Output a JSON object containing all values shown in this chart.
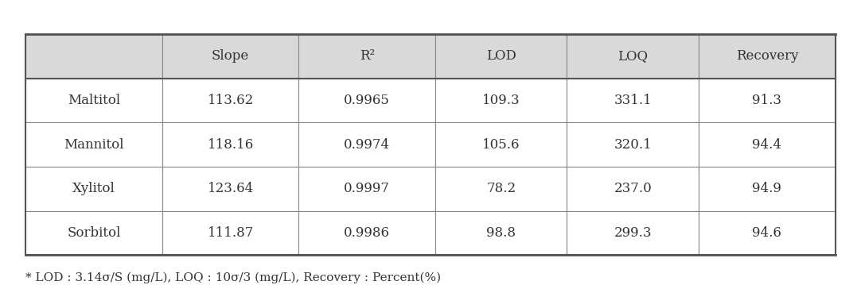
{
  "columns": [
    "",
    "Slope",
    "R²",
    "LOD",
    "LOQ",
    "Recovery"
  ],
  "rows": [
    [
      "Maltitol",
      "113.62",
      "0.9965",
      "109.3",
      "331.1",
      "91.3"
    ],
    [
      "Mannitol",
      "118.16",
      "0.9974",
      "105.6",
      "320.1",
      "94.4"
    ],
    [
      "Xylitol",
      "123.64",
      "0.9997",
      "78.2",
      "237.0",
      "94.9"
    ],
    [
      "Sorbitol",
      "111.87",
      "0.9986",
      "98.8",
      "299.3",
      "94.6"
    ]
  ],
  "footnote": "* LOD : 3.14σ/S (mg/L), LOQ : 10σ/3 (mg/L), Recovery : Percent(%)",
  "header_bg": "#d9d9d9",
  "row_bg": "#ffffff",
  "border_color": "#888888",
  "text_color": "#333333",
  "font_size": 12,
  "footnote_font_size": 11
}
